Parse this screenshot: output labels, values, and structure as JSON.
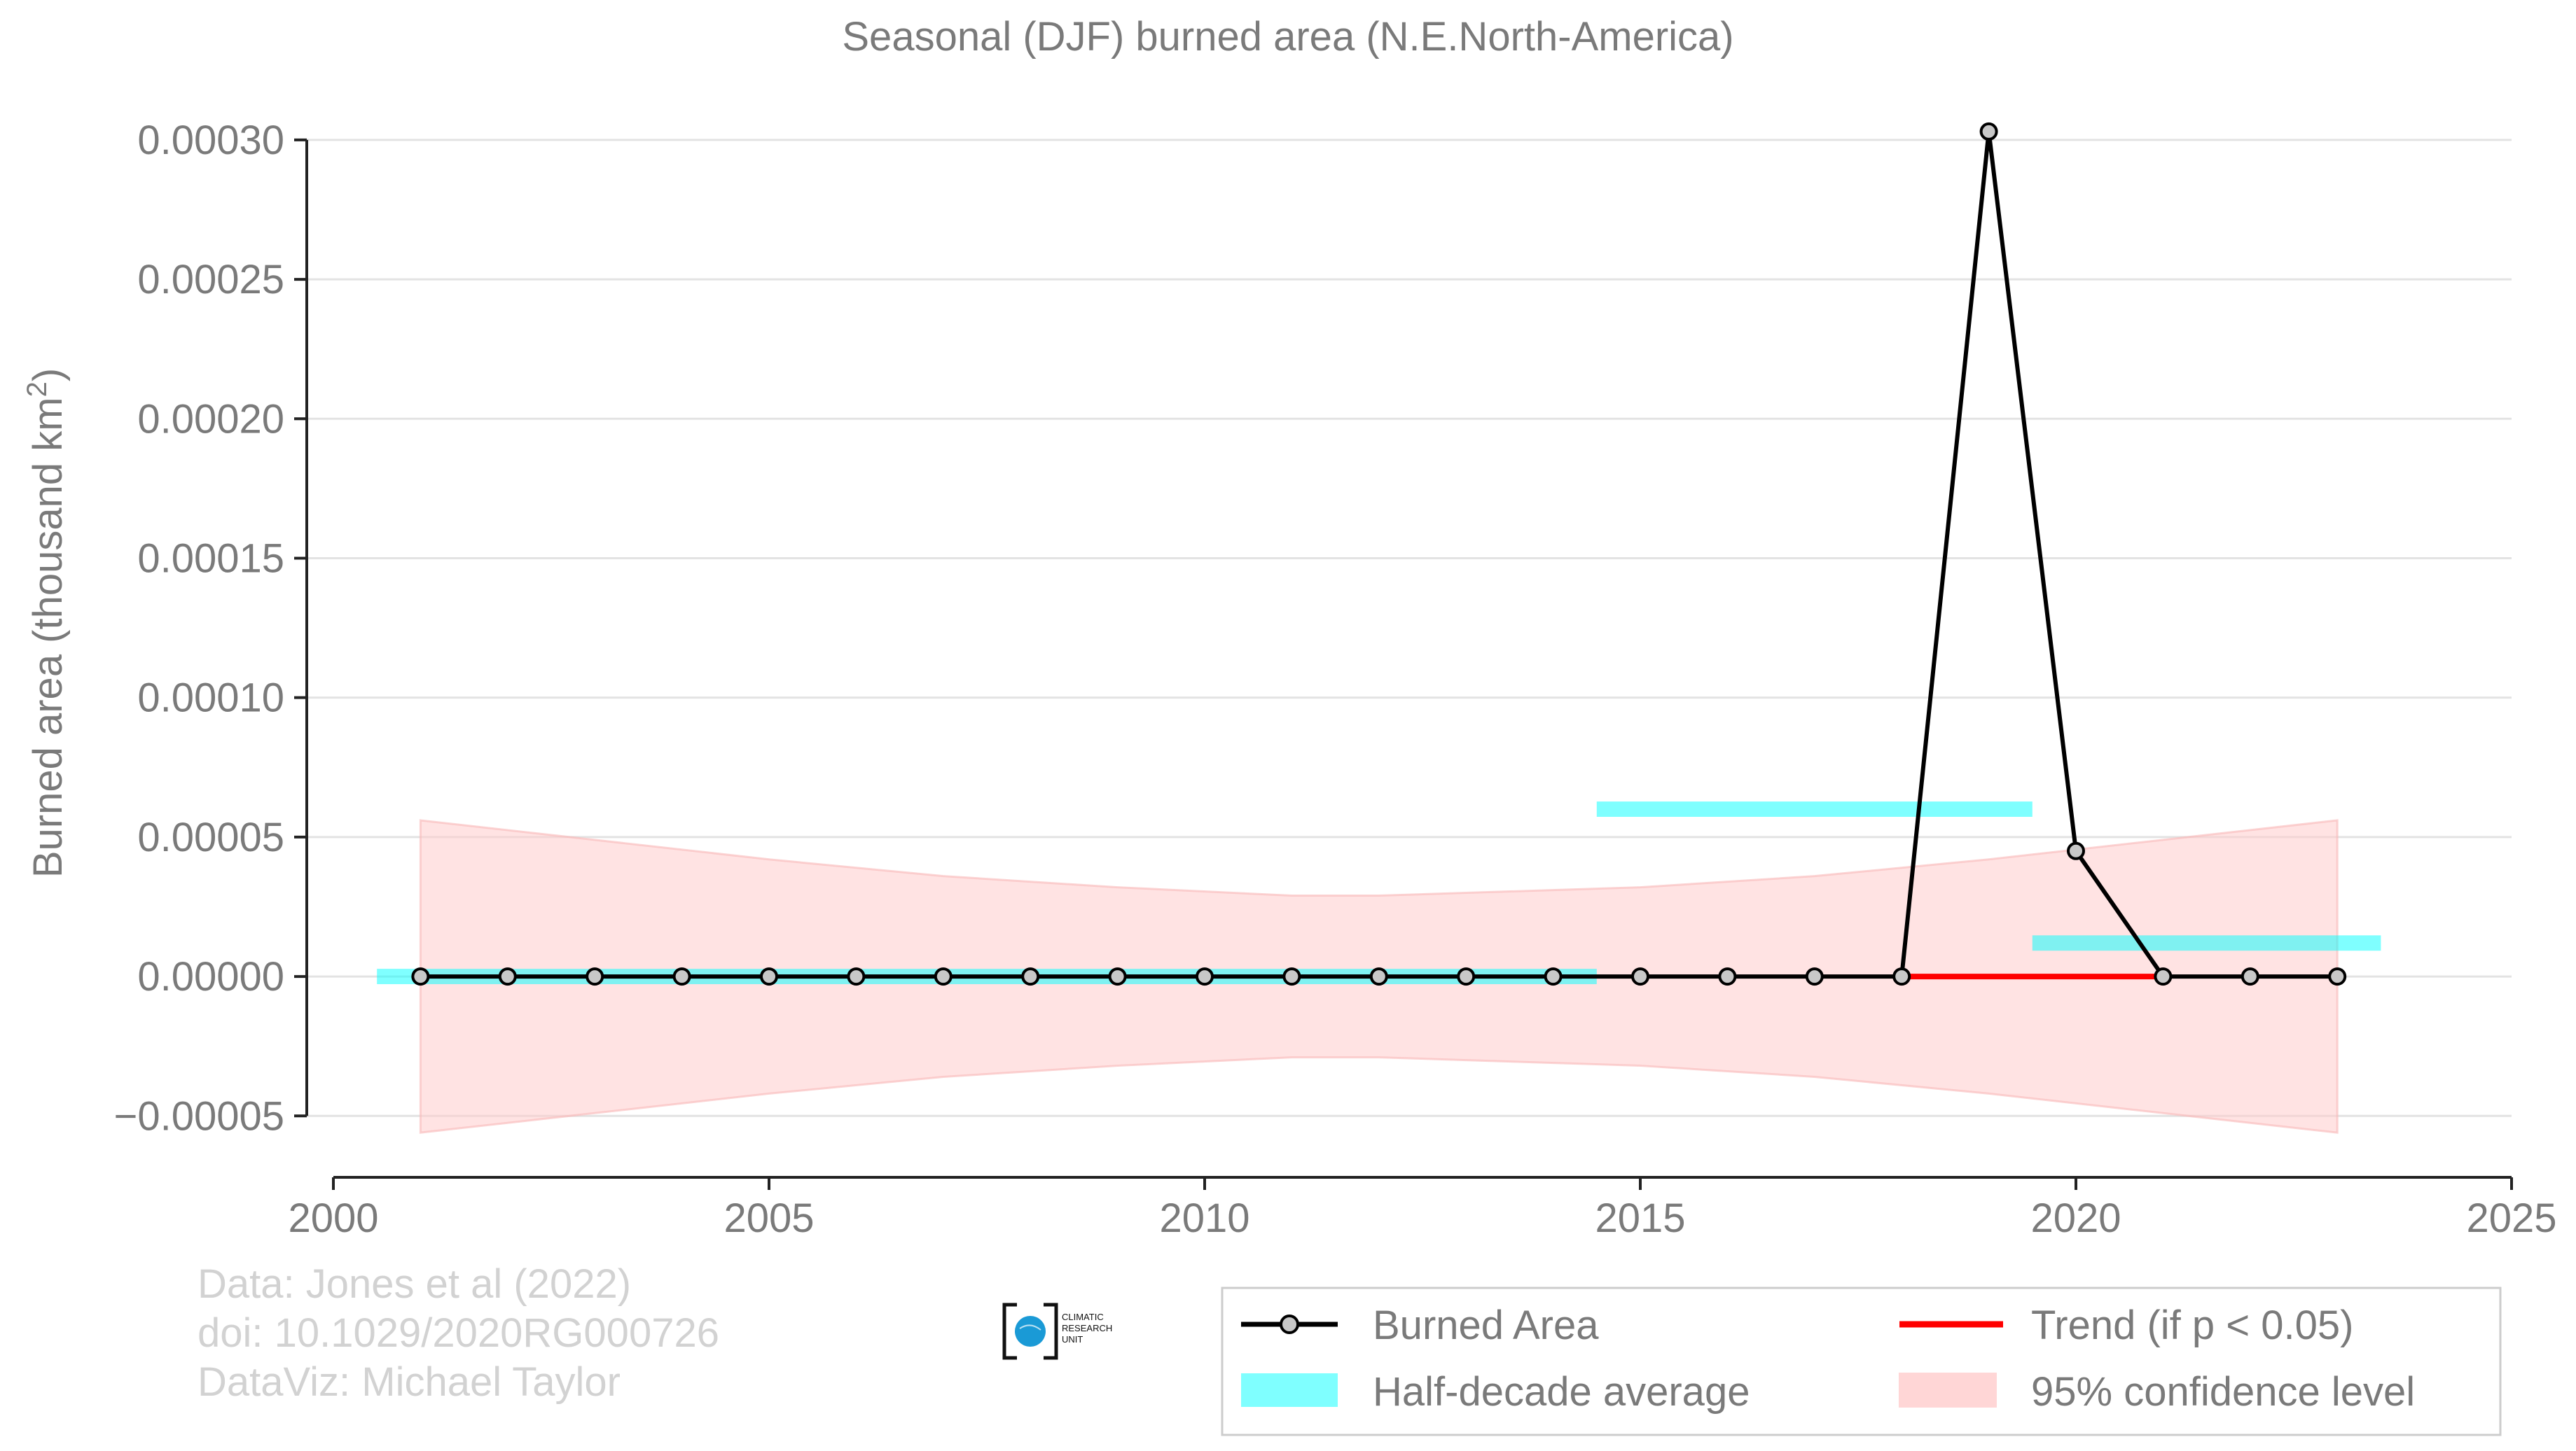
{
  "chart_data": {
    "type": "line",
    "title": "Seasonal (DJF) burned area (N.E.North-America)",
    "xlabel": "",
    "ylabel": "Burned area (thousand km",
    "ylabel_sup": "2",
    "ylabel_end": ")",
    "xlim": [
      2000,
      2025
    ],
    "ylim": [
      -6.7e-05,
      0.000307
    ],
    "x_ticks": [
      2000,
      2005,
      2010,
      2015,
      2020,
      2025
    ],
    "x_tick_labels": [
      "2000",
      "2005",
      "2010",
      "2015",
      "2020",
      "2025"
    ],
    "y_ticks": [
      -5e-05,
      0,
      5e-05,
      0.0001,
      0.00015,
      0.0002,
      0.00025,
      0.0003
    ],
    "y_tick_labels": [
      "−0.00005",
      "0.00000",
      "0.00005",
      "0.00010",
      "0.00015",
      "0.00020",
      "0.00025",
      "0.00030"
    ],
    "grid": true,
    "legend_position": "bottom-right",
    "series": [
      {
        "name": "Burned Area",
        "color": "#000000",
        "marker_fill": "#c8c8c8",
        "x": [
          2001,
          2002,
          2003,
          2004,
          2005,
          2006,
          2007,
          2008,
          2009,
          2010,
          2011,
          2012,
          2013,
          2014,
          2015,
          2016,
          2017,
          2018,
          2019,
          2020,
          2021,
          2022,
          2023
        ],
        "values": [
          0,
          0,
          0,
          0,
          0,
          0,
          0,
          0,
          0,
          0,
          0,
          0,
          0,
          0,
          0,
          0,
          0,
          0,
          0.000303,
          4.5e-05,
          0,
          0,
          0
        ]
      }
    ],
    "half_decade_average": {
      "name": "Half-decade average",
      "color": "#00ffff",
      "segments": [
        {
          "x_start": 2000.5,
          "x_end": 2014.5,
          "value": 0
        },
        {
          "x_start": 2014.5,
          "x_end": 2019.5,
          "value": 6e-05
        },
        {
          "x_start": 2019.5,
          "x_end": 2023.5,
          "value": 1.2e-05
        }
      ]
    },
    "trend": {
      "name": "Trend (if p < 0.05)",
      "color": "#ff0000",
      "x": [
        2018,
        2021
      ],
      "values": [
        0,
        0
      ]
    },
    "confidence_band": {
      "name": "95% confidence level",
      "color": "#ffcccc",
      "x": [
        2001,
        2003,
        2005,
        2007,
        2009,
        2011,
        2012,
        2013,
        2015,
        2017,
        2019,
        2021,
        2023
      ],
      "upper": [
        5.6e-05,
        4.9e-05,
        4.2e-05,
        3.6e-05,
        3.2e-05,
        2.9e-05,
        2.9e-05,
        3e-05,
        3.2e-05,
        3.6e-05,
        4.2e-05,
        4.9e-05,
        5.6e-05
      ],
      "lower": [
        -5.6e-05,
        -4.9e-05,
        -4.2e-05,
        -3.6e-05,
        -3.2e-05,
        -2.9e-05,
        -2.9e-05,
        -3e-05,
        -3.2e-05,
        -3.6e-05,
        -4.2e-05,
        -4.9e-05,
        -5.6e-05
      ]
    }
  },
  "credits": {
    "line1": "Data: Jones et al (2022)",
    "line2": "doi: 10.1029/2020RG000726",
    "line3": "DataViz: Michael Taylor"
  },
  "logo": {
    "line1": "CLIMATIC",
    "line2": "RESEARCH",
    "line3": "UNIT",
    "color": "#1a9ad6"
  },
  "legend": {
    "items": [
      {
        "label": "Burned Area",
        "kind": "line-marker"
      },
      {
        "label": "Trend (if p < 0.05)",
        "kind": "line-red"
      },
      {
        "label": "Half-decade average",
        "kind": "patch-cyan"
      },
      {
        "label": "95% confidence level",
        "kind": "patch-pink"
      }
    ]
  }
}
